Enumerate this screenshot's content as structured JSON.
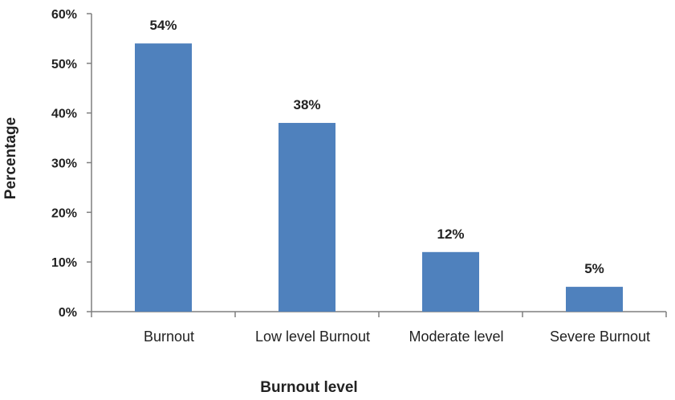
{
  "chart_data": {
    "type": "bar",
    "categories": [
      "Burnout",
      "Low level  Burnout",
      "Moderate  level",
      "Severe  Burnout"
    ],
    "values": [
      54,
      38,
      12,
      5
    ],
    "data_labels": [
      "54%",
      "38%",
      "12%",
      "5%"
    ],
    "xlabel": "Burnout level",
    "ylabel": "Percentage",
    "ylim": [
      0,
      60
    ],
    "y_ticks": [
      0,
      10,
      20,
      30,
      40,
      50,
      60
    ],
    "y_tick_labels": [
      "0%",
      "10%",
      "20%",
      "30%",
      "40%",
      "50%",
      "60%"
    ],
    "bar_color": "#4f81bd",
    "axis_color": "#7f7f7f",
    "grid": false,
    "legend": "none"
  }
}
